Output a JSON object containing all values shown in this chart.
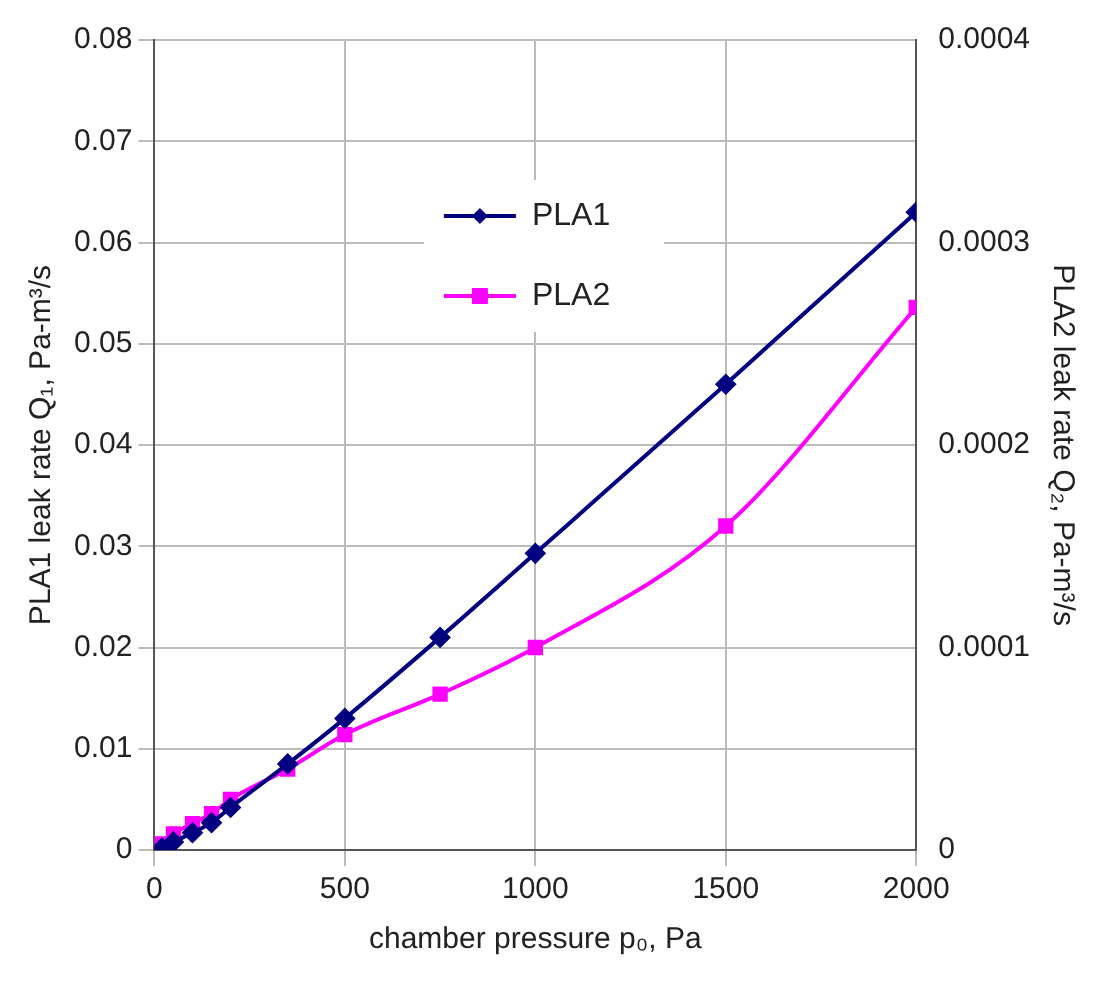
{
  "chart_data": {
    "type": "line",
    "xlabel": "chamber pressure p₀, Pa",
    "ylabel": "PLA1 leak rate Q₁, Pa-m³/s",
    "y2label": "PLA2 leak rate Q₂, Pa-m³/s",
    "x": [
      20,
      50,
      100,
      150,
      200,
      350,
      500,
      750,
      1000,
      1500,
      2000
    ],
    "series": [
      {
        "name": "PLA1",
        "color": "#000080",
        "marker": "diamond",
        "values": [
          0.0002,
          0.0008,
          0.0017,
          0.0027,
          0.0042,
          0.0085,
          0.013,
          0.021,
          0.0293,
          0.046,
          0.063
        ]
      },
      {
        "name": "PLA2",
        "color": "#ff00ff",
        "marker": "square",
        "axis": "y2",
        "values": [
          3e-06,
          8e-06,
          1.3e-05,
          1.8e-05,
          2.5e-05,
          4e-05,
          5.7e-05,
          7.7e-05,
          0.0001,
          0.00016,
          0.000268
        ]
      }
    ],
    "xlim": [
      0,
      2000
    ],
    "xticks": [
      0,
      500,
      1000,
      1500,
      2000
    ],
    "ylim": [
      0,
      0.08
    ],
    "yticks": [
      0,
      0.01,
      0.02,
      0.03,
      0.04,
      0.05,
      0.06,
      0.07,
      0.08
    ],
    "y2lim": [
      0,
      0.0004
    ],
    "y2ticks": [
      0,
      0.0001,
      0.0002,
      0.0003,
      0.0004
    ],
    "grid": true,
    "legend": "top",
    "line_style": "solid"
  }
}
